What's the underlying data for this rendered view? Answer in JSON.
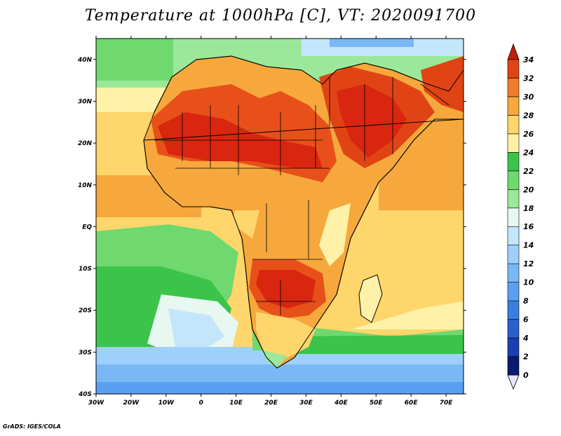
{
  "title": "Temperature at 1000hPa [C], VT: 2020091700",
  "credit": "GrADS: IGES/COLA",
  "map": {
    "lon_labels": [
      "30W",
      "20W",
      "10W",
      "0",
      "10E",
      "20E",
      "30E",
      "40E",
      "50E",
      "60E",
      "70E"
    ],
    "lat_labels": [
      "40N",
      "30N",
      "20N",
      "10N",
      "EQ",
      "10S",
      "20S",
      "30S",
      "40S"
    ],
    "lon_range": [
      -30,
      75
    ],
    "lat_range": [
      -40,
      45
    ]
  },
  "colorbar": {
    "levels": [
      "0",
      "2",
      "4",
      "6",
      "8",
      "10",
      "12",
      "14",
      "16",
      "18",
      "20",
      "22",
      "24",
      "26",
      "28",
      "30",
      "32",
      "34"
    ],
    "colors": [
      "#0a1a6e",
      "#1a3fb0",
      "#2a5fd0",
      "#3a7fe0",
      "#5a9ff0",
      "#7ab8f5",
      "#9dd0fa",
      "#c4e6fb",
      "#e6f8f0",
      "#9be89a",
      "#6fd86e",
      "#3cc34a",
      "#fff1a8",
      "#ffd66b",
      "#f6a83c",
      "#f07c2a",
      "#e04414",
      "#c41e0a"
    ],
    "under_color": "#e8e4fb",
    "over_color": "#c41e0a"
  }
}
